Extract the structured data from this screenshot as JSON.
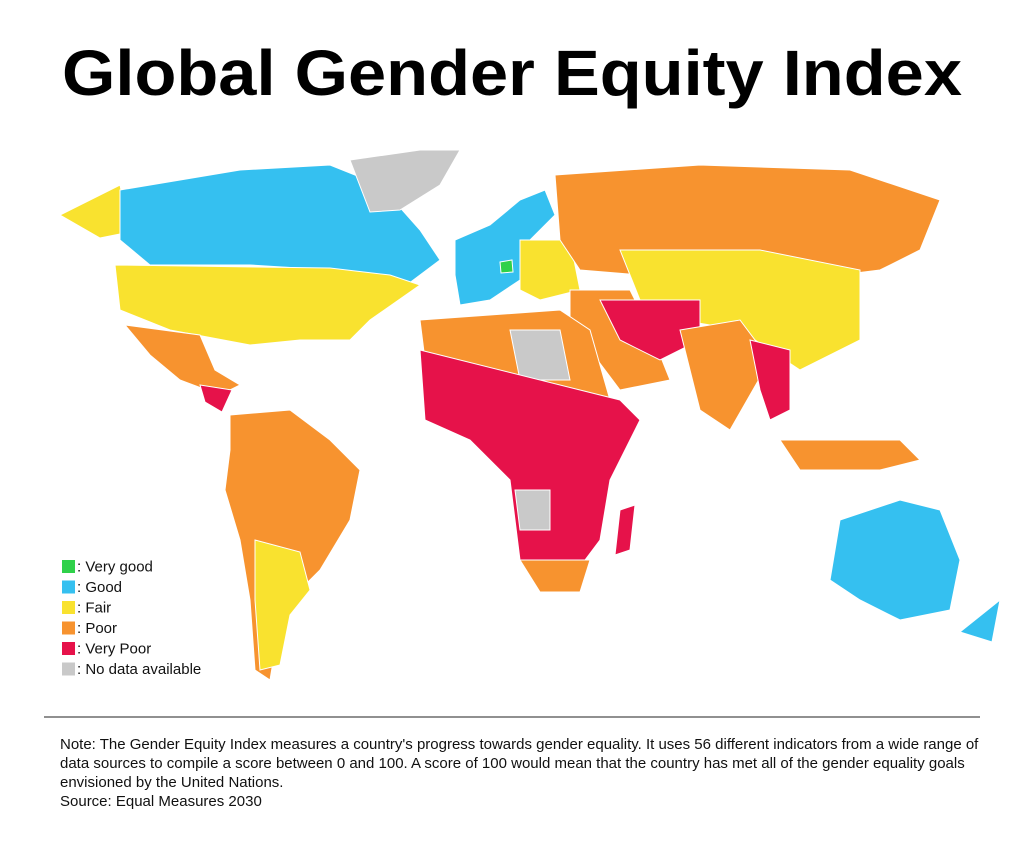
{
  "title": "Global Gender Equity Index",
  "legend": {
    "items": [
      {
        "label": ": Very good",
        "color": "#2fd14a"
      },
      {
        "label": ": Good",
        "color": "#35c0f0"
      },
      {
        "label": ": Fair",
        "color": "#f9e22f"
      },
      {
        "label": ": Poor",
        "color": "#f7932f"
      },
      {
        "label": ": Very Poor",
        "color": "#e6124a"
      },
      {
        "label": ": No data available",
        "color": "#c9c9c9"
      }
    ]
  },
  "note": "Note: The Gender Equity Index measures a country's progress towards gender equality. It uses 56 different indicators from a wide range of data sources to compile a score between 0 and 100. A score of 100 would mean that the country has met all of the gender equality goals envisioned by the United Nations.",
  "source": "Source: Equal Measures 2030"
}
